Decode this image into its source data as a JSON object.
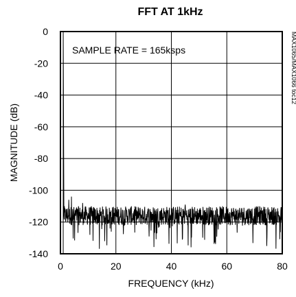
{
  "chart_data": {
    "type": "line",
    "title": "FFT AT 1kHz",
    "xlabel": "FREQUENCY (kHz)",
    "ylabel": "MAGNITUDE (dB)",
    "xlim": [
      0,
      80
    ],
    "ylim": [
      -140,
      0
    ],
    "x_ticks": [
      "0",
      "20",
      "40",
      "60",
      "80"
    ],
    "y_ticks": [
      "0",
      "-20",
      "-40",
      "-60",
      "-80",
      "-100",
      "-120",
      "-140"
    ],
    "x_tick_values": [
      0,
      20,
      40,
      60,
      80
    ],
    "y_tick_values": [
      0,
      -20,
      -40,
      -60,
      -80,
      -100,
      -120,
      -140
    ],
    "grid": true,
    "annotation": "SAMPLE RATE = 165ksps",
    "side_label": "MAX1065/MAX1066 toc12",
    "series": [
      {
        "fundamental_khz": 1,
        "fundamental_db": 0,
        "noise_floor_db": -116,
        "noise_spread_db": [
          -110,
          -122
        ],
        "noise_min_db": -137,
        "spurs": [
          {
            "x": 3,
            "y": -106
          },
          {
            "x": 4,
            "y": -104
          },
          {
            "x": 8,
            "y": -108
          },
          {
            "x": 45,
            "y": -109
          }
        ]
      }
    ]
  }
}
